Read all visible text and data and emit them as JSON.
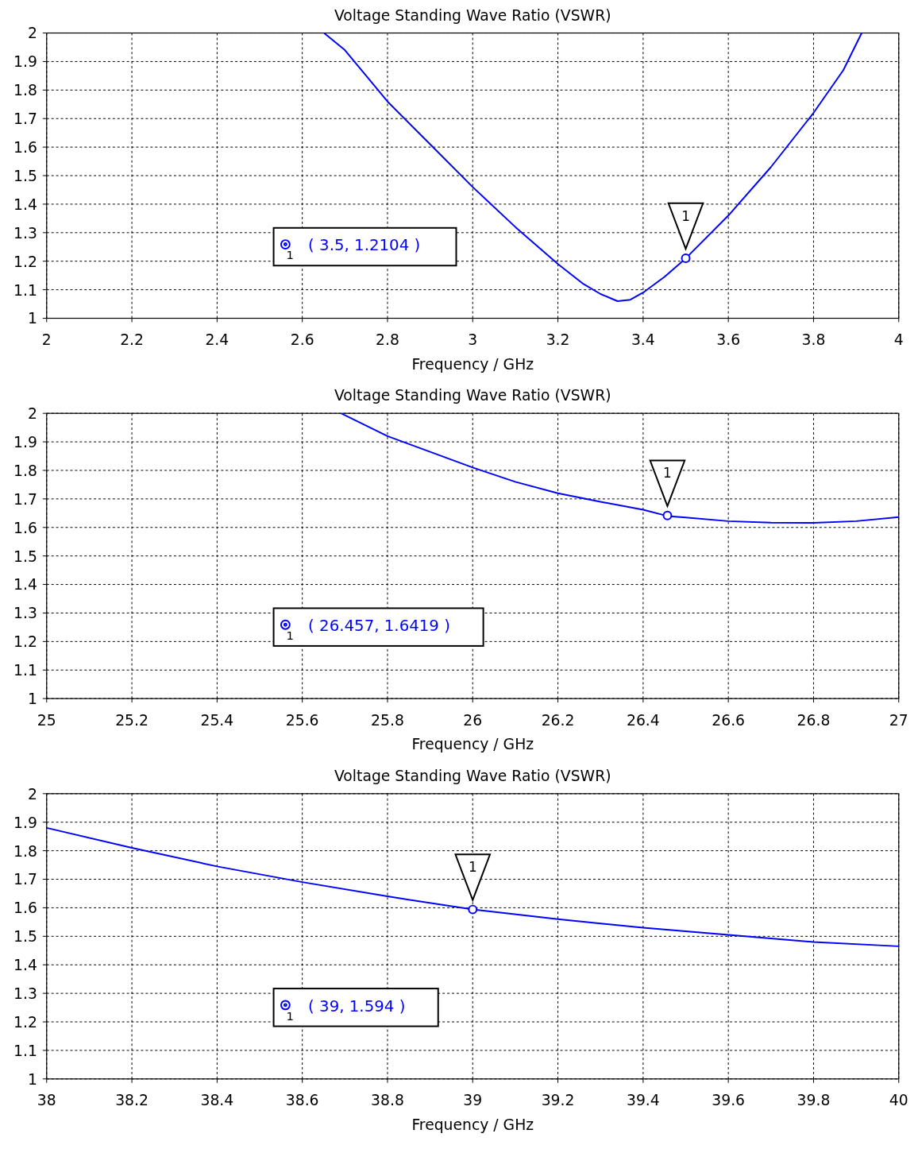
{
  "chart_data": [
    {
      "type": "line",
      "title": "Voltage Standing Wave Ratio (VSWR)",
      "xlabel": "Frequency / GHz",
      "xlim": [
        2,
        4
      ],
      "xticks": [
        2,
        2.2,
        2.4,
        2.6,
        2.8,
        3,
        3.2,
        3.4,
        3.6,
        3.8,
        4
      ],
      "ylim": [
        1,
        2
      ],
      "yticks": [
        1,
        1.1,
        1.2,
        1.3,
        1.4,
        1.5,
        1.6,
        1.7,
        1.8,
        1.9,
        2
      ],
      "grid": true,
      "series": [
        {
          "color": "#0000ff",
          "x": [
            2.651,
            2.7,
            2.8,
            2.9,
            3.0,
            3.1,
            3.2,
            3.26,
            3.3,
            3.34,
            3.37,
            3.4,
            3.45,
            3.5,
            3.6,
            3.7,
            3.8,
            3.87,
            3.913
          ],
          "values": [
            2,
            1.94,
            1.76,
            1.61,
            1.46,
            1.32,
            1.19,
            1.12,
            1.085,
            1.06,
            1.065,
            1.09,
            1.145,
            1.21,
            1.36,
            1.53,
            1.72,
            1.87,
            2
          ]
        },
        {
          "type": "scatter",
          "marker": "circle",
          "color": "#0000ff",
          "x": [
            3.5
          ],
          "values": [
            1.2104
          ]
        }
      ],
      "annotations": [
        {
          "text": "1",
          "x": 3.5,
          "y": 1.2104
        },
        "1",
        "( 3.5, 1.2104 )"
      ]
    },
    {
      "type": "line",
      "title": "Voltage Standing Wave Ratio (VSWR)",
      "xlabel": "Frequency / GHz",
      "xlim": [
        25,
        27
      ],
      "xticks": [
        25,
        25.2,
        25.4,
        25.6,
        25.8,
        26,
        26.2,
        26.4,
        26.6,
        26.8,
        27
      ],
      "ylim": [
        1,
        2
      ],
      "yticks": [
        1,
        1.1,
        1.2,
        1.3,
        1.4,
        1.5,
        1.6,
        1.7,
        1.8,
        1.9,
        2
      ],
      "grid": true,
      "series": [
        {
          "color": "#0000ff",
          "x": [
            25.691,
            25.8,
            25.9,
            26.0,
            26.1,
            26.2,
            26.3,
            26.4,
            26.457,
            26.5,
            26.6,
            26.7,
            26.8,
            26.9,
            27.0
          ],
          "values": [
            2,
            1.92,
            1.865,
            1.81,
            1.76,
            1.72,
            1.69,
            1.662,
            1.64,
            1.635,
            1.622,
            1.617,
            1.616,
            1.622,
            1.636
          ]
        },
        {
          "type": "scatter",
          "marker": "circle",
          "color": "#0000ff",
          "x": [
            26.457
          ],
          "values": [
            1.6419
          ]
        }
      ],
      "annotations": [
        {
          "text": "1",
          "x": 26.457,
          "y": 1.6419
        },
        "1",
        "( 26.457, 1.6419 )"
      ]
    },
    {
      "type": "line",
      "title": "Voltage Standing Wave Ratio (VSWR)",
      "xlabel": "Frequency / GHz",
      "xlim": [
        38,
        40
      ],
      "xticks": [
        38,
        38.2,
        38.4,
        38.6,
        38.8,
        39,
        39.2,
        39.4,
        39.6,
        39.8,
        40
      ],
      "ylim": [
        1,
        2
      ],
      "yticks": [
        1,
        1.1,
        1.2,
        1.3,
        1.4,
        1.5,
        1.6,
        1.7,
        1.8,
        1.9,
        2
      ],
      "grid": true,
      "series": [
        {
          "color": "#0000ff",
          "x": [
            38,
            38.2,
            38.4,
            38.6,
            38.8,
            39,
            39.2,
            39.4,
            39.6,
            39.8,
            40
          ],
          "values": [
            1.88,
            1.81,
            1.745,
            1.69,
            1.64,
            1.594,
            1.56,
            1.53,
            1.505,
            1.48,
            1.465
          ]
        },
        {
          "type": "scatter",
          "marker": "circle",
          "color": "#0000ff",
          "x": [
            39
          ],
          "values": [
            1.594
          ]
        }
      ],
      "annotations": [
        {
          "text": "1",
          "x": 39,
          "y": 1.594
        },
        "1",
        "( 39, 1.594 )"
      ]
    }
  ]
}
